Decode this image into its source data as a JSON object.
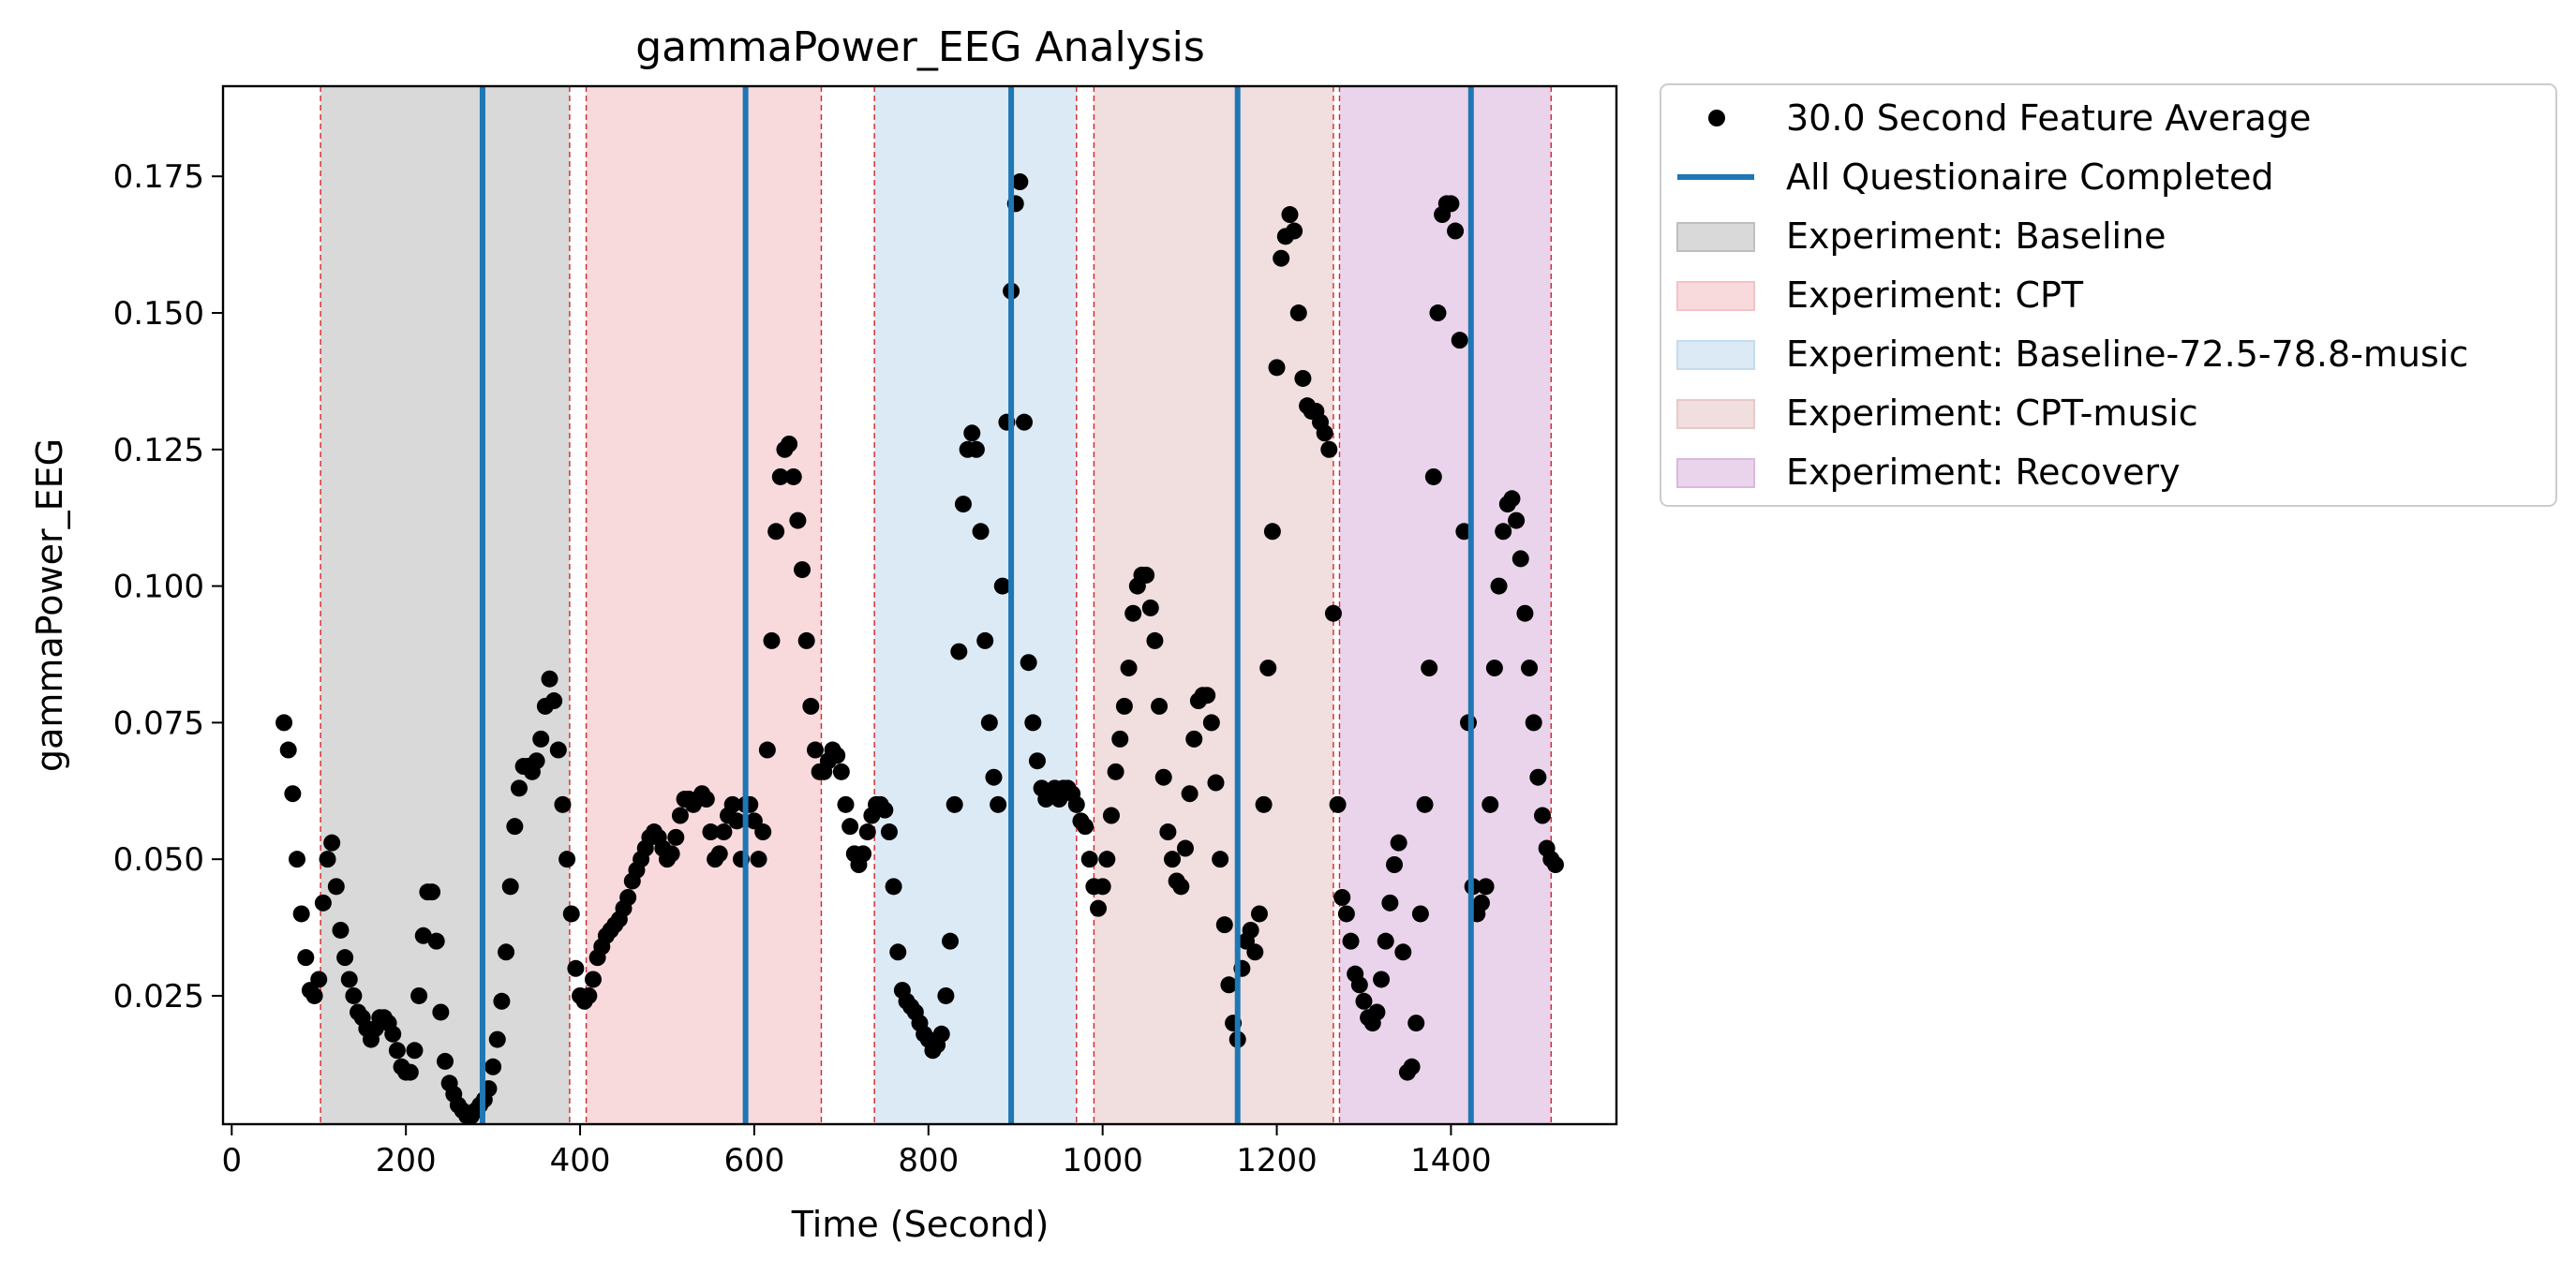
{
  "chart_data": {
    "type": "scatter",
    "title": "gammaPower_EEG Analysis",
    "xlabel": "Time (Second)",
    "ylabel": "gammaPower_EEG",
    "xlim": [
      -10,
      1590
    ],
    "ylim": [
      0.0015,
      0.1915
    ],
    "x_ticks": [
      0,
      200,
      400,
      600,
      800,
      1000,
      1200,
      1400
    ],
    "y_ticks": [
      0.025,
      0.05,
      0.075,
      0.1,
      0.125,
      0.15,
      0.175
    ],
    "x_tick_labels": [
      "0",
      "200",
      "400",
      "600",
      "800",
      "1000",
      "1200",
      "1400"
    ],
    "y_tick_labels": [
      "0.025",
      "0.050",
      "0.075",
      "0.100",
      "0.125",
      "0.150",
      "0.175"
    ],
    "grid": false,
    "legend_position": "outside-upper-right",
    "series": [
      {
        "name": "30.0 Second Feature Average",
        "color": "#000000",
        "marker": "circle",
        "points": [
          [
            60,
            0.075
          ],
          [
            65,
            0.07
          ],
          [
            70,
            0.062
          ],
          [
            75,
            0.05
          ],
          [
            80,
            0.04
          ],
          [
            85,
            0.032
          ],
          [
            90,
            0.026
          ],
          [
            95,
            0.025
          ],
          [
            100,
            0.028
          ],
          [
            105,
            0.042
          ],
          [
            110,
            0.05
          ],
          [
            115,
            0.053
          ],
          [
            120,
            0.045
          ],
          [
            125,
            0.037
          ],
          [
            130,
            0.032
          ],
          [
            135,
            0.028
          ],
          [
            140,
            0.025
          ],
          [
            145,
            0.022
          ],
          [
            150,
            0.021
          ],
          [
            155,
            0.019
          ],
          [
            160,
            0.017
          ],
          [
            165,
            0.019
          ],
          [
            170,
            0.021
          ],
          [
            175,
            0.021
          ],
          [
            180,
            0.02
          ],
          [
            185,
            0.018
          ],
          [
            190,
            0.015
          ],
          [
            195,
            0.012
          ],
          [
            200,
            0.011
          ],
          [
            205,
            0.011
          ],
          [
            210,
            0.015
          ],
          [
            215,
            0.025
          ],
          [
            220,
            0.036
          ],
          [
            225,
            0.044
          ],
          [
            230,
            0.044
          ],
          [
            235,
            0.035
          ],
          [
            240,
            0.022
          ],
          [
            245,
            0.013
          ],
          [
            250,
            0.009
          ],
          [
            255,
            0.007
          ],
          [
            260,
            0.005
          ],
          [
            265,
            0.004
          ],
          [
            270,
            0.003
          ],
          [
            275,
            0.003
          ],
          [
            280,
            0.004
          ],
          [
            285,
            0.005
          ],
          [
            290,
            0.006
          ],
          [
            295,
            0.008
          ],
          [
            300,
            0.012
          ],
          [
            305,
            0.017
          ],
          [
            310,
            0.024
          ],
          [
            315,
            0.033
          ],
          [
            320,
            0.045
          ],
          [
            325,
            0.056
          ],
          [
            330,
            0.063
          ],
          [
            335,
            0.067
          ],
          [
            340,
            0.067
          ],
          [
            345,
            0.066
          ],
          [
            350,
            0.068
          ],
          [
            355,
            0.072
          ],
          [
            360,
            0.078
          ],
          [
            365,
            0.083
          ],
          [
            370,
            0.079
          ],
          [
            375,
            0.07
          ],
          [
            380,
            0.06
          ],
          [
            385,
            0.05
          ],
          [
            390,
            0.04
          ],
          [
            395,
            0.03
          ],
          [
            400,
            0.025
          ],
          [
            405,
            0.024
          ],
          [
            410,
            0.025
          ],
          [
            415,
            0.028
          ],
          [
            420,
            0.032
          ],
          [
            425,
            0.034
          ],
          [
            430,
            0.036
          ],
          [
            435,
            0.037
          ],
          [
            440,
            0.038
          ],
          [
            445,
            0.039
          ],
          [
            450,
            0.041
          ],
          [
            455,
            0.043
          ],
          [
            460,
            0.046
          ],
          [
            465,
            0.048
          ],
          [
            470,
            0.05
          ],
          [
            475,
            0.052
          ],
          [
            480,
            0.054
          ],
          [
            485,
            0.055
          ],
          [
            490,
            0.054
          ],
          [
            495,
            0.052
          ],
          [
            500,
            0.05
          ],
          [
            505,
            0.051
          ],
          [
            510,
            0.054
          ],
          [
            515,
            0.058
          ],
          [
            520,
            0.061
          ],
          [
            525,
            0.061
          ],
          [
            530,
            0.06
          ],
          [
            535,
            0.061
          ],
          [
            540,
            0.062
          ],
          [
            545,
            0.061
          ],
          [
            550,
            0.055
          ],
          [
            555,
            0.05
          ],
          [
            560,
            0.051
          ],
          [
            565,
            0.055
          ],
          [
            570,
            0.058
          ],
          [
            575,
            0.06
          ],
          [
            580,
            0.057
          ],
          [
            585,
            0.05
          ],
          [
            590,
            0.06
          ],
          [
            595,
            0.06
          ],
          [
            600,
            0.057
          ],
          [
            605,
            0.05
          ],
          [
            610,
            0.055
          ],
          [
            615,
            0.07
          ],
          [
            620,
            0.09
          ],
          [
            625,
            0.11
          ],
          [
            630,
            0.12
          ],
          [
            635,
            0.125
          ],
          [
            640,
            0.126
          ],
          [
            645,
            0.12
          ],
          [
            650,
            0.112
          ],
          [
            655,
            0.103
          ],
          [
            660,
            0.09
          ],
          [
            665,
            0.078
          ],
          [
            670,
            0.07
          ],
          [
            675,
            0.066
          ],
          [
            680,
            0.066
          ],
          [
            685,
            0.068
          ],
          [
            690,
            0.07
          ],
          [
            695,
            0.069
          ],
          [
            700,
            0.066
          ],
          [
            705,
            0.06
          ],
          [
            710,
            0.056
          ],
          [
            715,
            0.051
          ],
          [
            720,
            0.049
          ],
          [
            725,
            0.051
          ],
          [
            730,
            0.055
          ],
          [
            735,
            0.058
          ],
          [
            740,
            0.06
          ],
          [
            745,
            0.06
          ],
          [
            750,
            0.059
          ],
          [
            755,
            0.055
          ],
          [
            760,
            0.045
          ],
          [
            765,
            0.033
          ],
          [
            770,
            0.026
          ],
          [
            775,
            0.024
          ],
          [
            780,
            0.023
          ],
          [
            785,
            0.022
          ],
          [
            790,
            0.02
          ],
          [
            795,
            0.018
          ],
          [
            800,
            0.017
          ],
          [
            805,
            0.015
          ],
          [
            810,
            0.016
          ],
          [
            815,
            0.018
          ],
          [
            820,
            0.025
          ],
          [
            825,
            0.035
          ],
          [
            830,
            0.06
          ],
          [
            835,
            0.088
          ],
          [
            840,
            0.115
          ],
          [
            845,
            0.125
          ],
          [
            850,
            0.128
          ],
          [
            855,
            0.125
          ],
          [
            860,
            0.11
          ],
          [
            865,
            0.09
          ],
          [
            870,
            0.075
          ],
          [
            875,
            0.065
          ],
          [
            880,
            0.06
          ],
          [
            885,
            0.1
          ],
          [
            890,
            0.13
          ],
          [
            895,
            0.154
          ],
          [
            900,
            0.17
          ],
          [
            905,
            0.174
          ],
          [
            910,
            0.13
          ],
          [
            915,
            0.086
          ],
          [
            920,
            0.075
          ],
          [
            925,
            0.068
          ],
          [
            930,
            0.063
          ],
          [
            935,
            0.061
          ],
          [
            940,
            0.062
          ],
          [
            945,
            0.063
          ],
          [
            950,
            0.061
          ],
          [
            955,
            0.063
          ],
          [
            960,
            0.063
          ],
          [
            965,
            0.062
          ],
          [
            970,
            0.06
          ],
          [
            975,
            0.057
          ],
          [
            980,
            0.056
          ],
          [
            985,
            0.05
          ],
          [
            990,
            0.045
          ],
          [
            995,
            0.041
          ],
          [
            1000,
            0.045
          ],
          [
            1005,
            0.05
          ],
          [
            1010,
            0.058
          ],
          [
            1015,
            0.066
          ],
          [
            1020,
            0.072
          ],
          [
            1025,
            0.078
          ],
          [
            1030,
            0.085
          ],
          [
            1035,
            0.095
          ],
          [
            1040,
            0.1
          ],
          [
            1045,
            0.102
          ],
          [
            1050,
            0.102
          ],
          [
            1055,
            0.096
          ],
          [
            1060,
            0.09
          ],
          [
            1065,
            0.078
          ],
          [
            1070,
            0.065
          ],
          [
            1075,
            0.055
          ],
          [
            1080,
            0.05
          ],
          [
            1085,
            0.046
          ],
          [
            1090,
            0.045
          ],
          [
            1095,
            0.052
          ],
          [
            1100,
            0.062
          ],
          [
            1105,
            0.072
          ],
          [
            1110,
            0.079
          ],
          [
            1115,
            0.08
          ],
          [
            1120,
            0.08
          ],
          [
            1125,
            0.075
          ],
          [
            1130,
            0.064
          ],
          [
            1135,
            0.05
          ],
          [
            1140,
            0.038
          ],
          [
            1145,
            0.027
          ],
          [
            1150,
            0.02
          ],
          [
            1155,
            0.017
          ],
          [
            1160,
            0.03
          ],
          [
            1165,
            0.035
          ],
          [
            1170,
            0.037
          ],
          [
            1175,
            0.033
          ],
          [
            1180,
            0.04
          ],
          [
            1185,
            0.06
          ],
          [
            1190,
            0.085
          ],
          [
            1195,
            0.11
          ],
          [
            1200,
            0.14
          ],
          [
            1205,
            0.16
          ],
          [
            1210,
            0.164
          ],
          [
            1215,
            0.168
          ],
          [
            1220,
            0.165
          ],
          [
            1225,
            0.15
          ],
          [
            1230,
            0.138
          ],
          [
            1235,
            0.133
          ],
          [
            1240,
            0.132
          ],
          [
            1245,
            0.132
          ],
          [
            1250,
            0.13
          ],
          [
            1255,
            0.128
          ],
          [
            1260,
            0.125
          ],
          [
            1265,
            0.095
          ],
          [
            1270,
            0.06
          ],
          [
            1275,
            0.043
          ],
          [
            1280,
            0.04
          ],
          [
            1285,
            0.035
          ],
          [
            1290,
            0.029
          ],
          [
            1295,
            0.027
          ],
          [
            1300,
            0.024
          ],
          [
            1305,
            0.021
          ],
          [
            1310,
            0.02
          ],
          [
            1315,
            0.022
          ],
          [
            1320,
            0.028
          ],
          [
            1325,
            0.035
          ],
          [
            1330,
            0.042
          ],
          [
            1335,
            0.049
          ],
          [
            1340,
            0.053
          ],
          [
            1345,
            0.033
          ],
          [
            1350,
            0.011
          ],
          [
            1355,
            0.012
          ],
          [
            1360,
            0.02
          ],
          [
            1365,
            0.04
          ],
          [
            1370,
            0.06
          ],
          [
            1375,
            0.085
          ],
          [
            1380,
            0.12
          ],
          [
            1385,
            0.15
          ],
          [
            1390,
            0.168
          ],
          [
            1395,
            0.17
          ],
          [
            1400,
            0.17
          ],
          [
            1405,
            0.165
          ],
          [
            1410,
            0.145
          ],
          [
            1415,
            0.11
          ],
          [
            1420,
            0.075
          ],
          [
            1425,
            0.045
          ],
          [
            1430,
            0.04
          ],
          [
            1435,
            0.042
          ],
          [
            1440,
            0.045
          ],
          [
            1445,
            0.06
          ],
          [
            1450,
            0.085
          ],
          [
            1455,
            0.1
          ],
          [
            1460,
            0.11
          ],
          [
            1465,
            0.115
          ],
          [
            1470,
            0.116
          ],
          [
            1475,
            0.112
          ],
          [
            1480,
            0.105
          ],
          [
            1485,
            0.095
          ],
          [
            1490,
            0.085
          ],
          [
            1495,
            0.075
          ],
          [
            1500,
            0.065
          ],
          [
            1505,
            0.058
          ],
          [
            1510,
            0.052
          ],
          [
            1515,
            0.05
          ],
          [
            1520,
            0.049
          ]
        ]
      },
      {
        "name": "All Questionaire Completed",
        "type": "vline",
        "color": "#1f77b4",
        "x": [
          288,
          590,
          895,
          1155,
          1423
        ]
      }
    ],
    "regions": [
      {
        "name": "Experiment: Baseline",
        "color": "#bfbfbf",
        "spans": [
          [
            102,
            388
          ]
        ]
      },
      {
        "name": "Experiment: CPT",
        "color": "#f4c2c6",
        "spans": [
          [
            407,
            677
          ]
        ]
      },
      {
        "name": "Experiment: Baseline-72.5-78.8-music",
        "color": "#c5dcee",
        "spans": [
          [
            738,
            970
          ]
        ]
      },
      {
        "name": "Experiment: CPT-music",
        "color": "#e8c8c8",
        "spans": [
          [
            990,
            1265
          ]
        ]
      },
      {
        "name": "Experiment: Recovery",
        "color": "#dcb8dd",
        "spans": [
          [
            1272,
            1515
          ]
        ]
      }
    ],
    "region_boundaries": [
      102,
      388,
      407,
      677,
      738,
      970,
      990,
      1265,
      1272,
      1515
    ]
  }
}
